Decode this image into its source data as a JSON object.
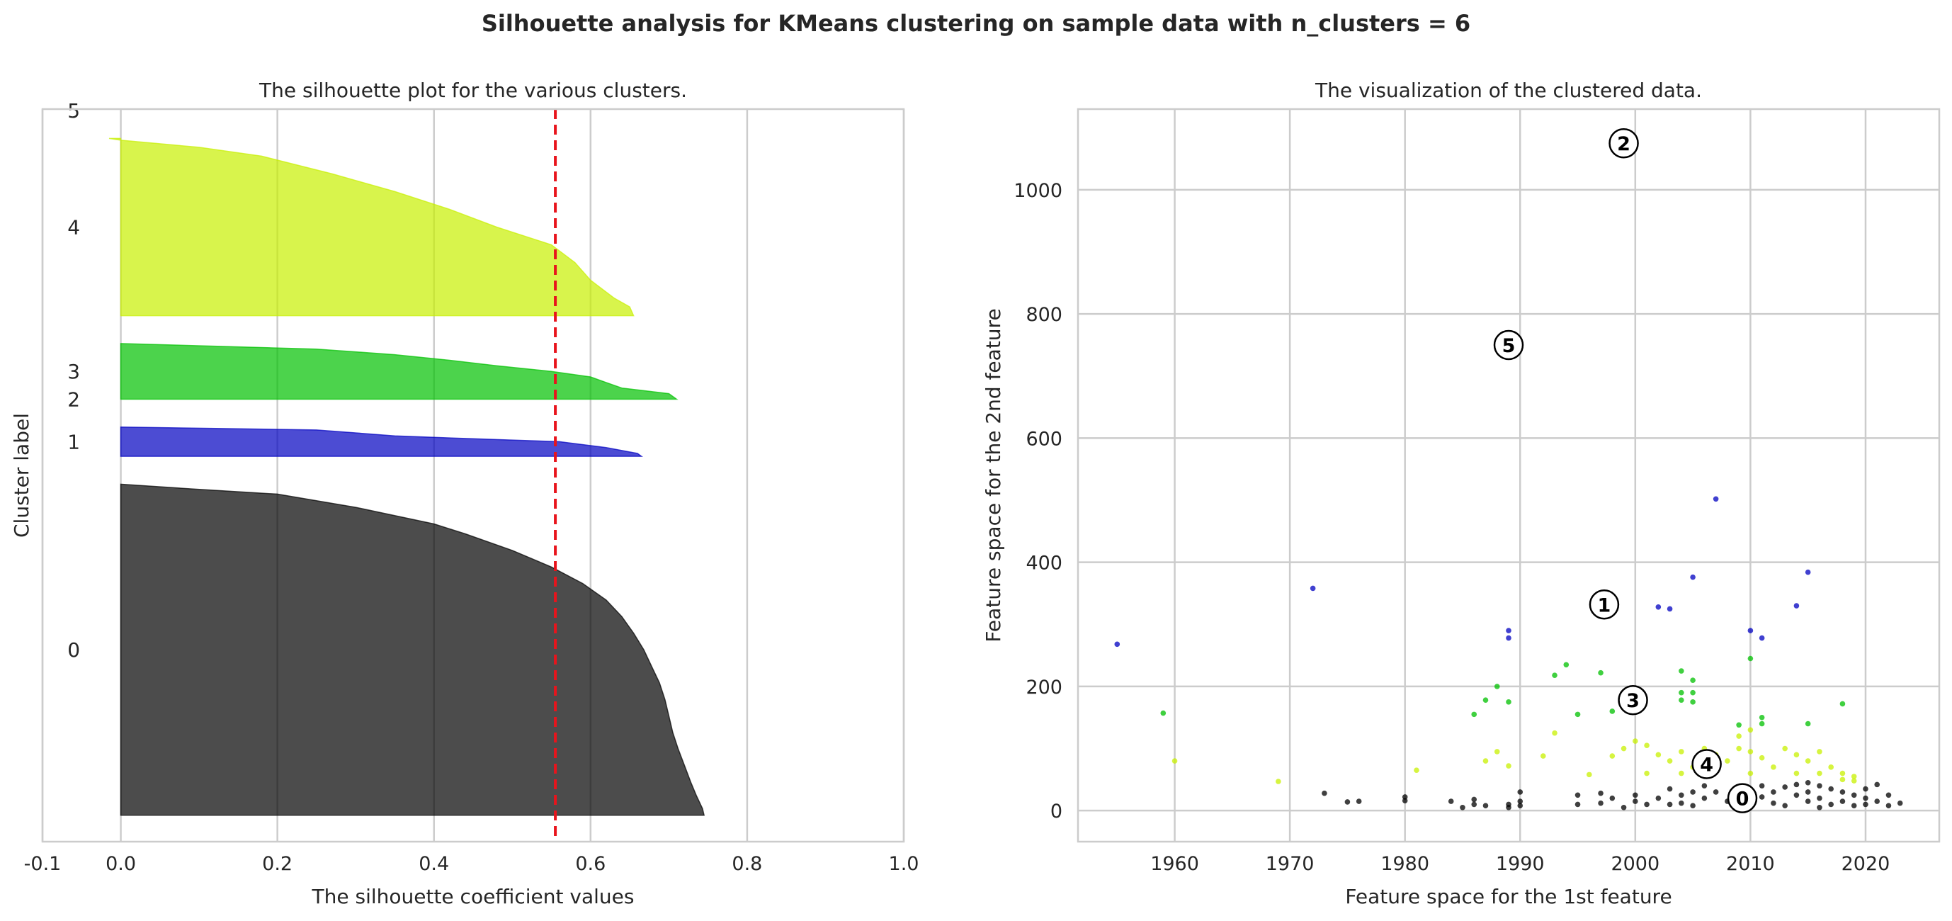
{
  "suptitle": "Silhouette analysis for KMeans clustering on sample data with n_clusters = 6",
  "chart_data": [
    {
      "type": "area",
      "title": "The silhouette plot for the various clusters.",
      "xlabel": "The silhouette coefficient values",
      "ylabel": "Cluster label",
      "xlim": [
        -0.1,
        1.0
      ],
      "ylim": [
        0,
        1000
      ],
      "xticks": [
        "-0.1",
        "0.0",
        "0.2",
        "0.4",
        "0.6",
        "0.8",
        "1.0"
      ],
      "average_silhouette": 0.555,
      "clusters": [
        {
          "label": "0",
          "color": "#000000",
          "y0": 36,
          "y1": 488,
          "profile": [
            [
              0,
              0.745
            ],
            [
              0.02,
              0.743
            ],
            [
              0.06,
              0.735
            ],
            [
              0.1,
              0.728
            ],
            [
              0.15,
              0.72
            ],
            [
              0.2,
              0.712
            ],
            [
              0.25,
              0.705
            ],
            [
              0.3,
              0.7
            ],
            [
              0.35,
              0.695
            ],
            [
              0.4,
              0.688
            ],
            [
              0.45,
              0.678
            ],
            [
              0.5,
              0.668
            ],
            [
              0.55,
              0.655
            ],
            [
              0.6,
              0.64
            ],
            [
              0.65,
              0.62
            ],
            [
              0.7,
              0.59
            ],
            [
              0.75,
              0.55
            ],
            [
              0.8,
              0.5
            ],
            [
              0.85,
              0.44
            ],
            [
              0.88,
              0.4
            ],
            [
              0.9,
              0.36
            ],
            [
              0.93,
              0.3
            ],
            [
              0.95,
              0.25
            ],
            [
              0.97,
              0.2
            ],
            [
              0.985,
              0.095
            ],
            [
              1,
              0.0
            ]
          ]
        },
        {
          "label": "1",
          "color": "#0000c0",
          "y0": 526,
          "y1": 566,
          "profile": [
            [
              0,
              0.665
            ],
            [
              0.1,
              0.66
            ],
            [
              0.3,
              0.62
            ],
            [
              0.5,
              0.56
            ],
            [
              0.6,
              0.45
            ],
            [
              0.7,
              0.35
            ],
            [
              0.8,
              0.3
            ],
            [
              0.9,
              0.25
            ],
            [
              1,
              0.0
            ]
          ]
        },
        {
          "label": "2",
          "color": "#00a0ff",
          "y0": 604,
          "y1": 604,
          "profile": [
            [
              0,
              0.0
            ],
            [
              1,
              0.0
            ]
          ]
        },
        {
          "label": "3",
          "color": "#00c000",
          "y0": 604,
          "y1": 680,
          "profile": [
            [
              0,
              0.71
            ],
            [
              0.1,
              0.7
            ],
            [
              0.2,
              0.64
            ],
            [
              0.3,
              0.62
            ],
            [
              0.4,
              0.6
            ],
            [
              0.5,
              0.55
            ],
            [
              0.6,
              0.48
            ],
            [
              0.7,
              0.42
            ],
            [
              0.8,
              0.35
            ],
            [
              0.9,
              0.25
            ],
            [
              1,
              0.0
            ]
          ]
        },
        {
          "label": "4",
          "color": "#c8f000",
          "y0": 718,
          "y1": 960,
          "profile": [
            [
              0,
              0.655
            ],
            [
              0.05,
              0.65
            ],
            [
              0.1,
              0.63
            ],
            [
              0.15,
              0.615
            ],
            [
              0.2,
              0.6
            ],
            [
              0.3,
              0.58
            ],
            [
              0.4,
              0.55
            ],
            [
              0.5,
              0.48
            ],
            [
              0.6,
              0.42
            ],
            [
              0.7,
              0.35
            ],
            [
              0.8,
              0.27
            ],
            [
              0.9,
              0.18
            ],
            [
              0.95,
              0.1
            ],
            [
              0.99,
              0.0
            ],
            [
              1,
              -0.015
            ]
          ]
        },
        {
          "label": "5",
          "color": "#ff0000",
          "y0": 998,
          "y1": 998,
          "profile": [
            [
              0,
              0.0
            ],
            [
              1,
              0.0
            ]
          ]
        }
      ]
    },
    {
      "type": "scatter",
      "title": "The visualization of the clustered data.",
      "xlabel": "Feature space for the 1st feature",
      "ylabel": "Feature space for the 2nd feature",
      "xlim": [
        1951.6,
        2026.4
      ],
      "ylim": [
        -50,
        1130
      ],
      "xticks": [
        1960,
        1970,
        1980,
        1990,
        2000,
        2010,
        2020
      ],
      "yticks": [
        0,
        200,
        400,
        600,
        800,
        1000
      ],
      "cluster_colors": [
        "#000000",
        "#0000c0",
        "#00a0ff",
        "#00c000",
        "#c8f000",
        "#ff0000"
      ],
      "centers": [
        {
          "label": "0",
          "x": 2009.3,
          "y": 20
        },
        {
          "label": "1",
          "x": 1997.3,
          "y": 332
        },
        {
          "label": "2",
          "x": 1999.0,
          "y": 1075
        },
        {
          "label": "3",
          "x": 1999.8,
          "y": 178
        },
        {
          "label": "4",
          "x": 2006.2,
          "y": 75
        },
        {
          "label": "5",
          "x": 1989.0,
          "y": 750
        }
      ],
      "points": [
        {
          "c": 1,
          "x": 1955,
          "y": 268
        },
        {
          "c": 1,
          "x": 1972,
          "y": 358
        },
        {
          "c": 1,
          "x": 1989,
          "y": 290
        },
        {
          "c": 1,
          "x": 1989,
          "y": 278
        },
        {
          "c": 1,
          "x": 2002,
          "y": 328
        },
        {
          "c": 1,
          "x": 2003,
          "y": 325
        },
        {
          "c": 1,
          "x": 2005,
          "y": 376
        },
        {
          "c": 1,
          "x": 2007,
          "y": 502
        },
        {
          "c": 1,
          "x": 2010,
          "y": 290
        },
        {
          "c": 1,
          "x": 2011,
          "y": 278
        },
        {
          "c": 1,
          "x": 2014,
          "y": 330
        },
        {
          "c": 1,
          "x": 2015,
          "y": 384
        },
        {
          "c": 3,
          "x": 1959,
          "y": 157
        },
        {
          "c": 3,
          "x": 1986,
          "y": 155
        },
        {
          "c": 3,
          "x": 1987,
          "y": 178
        },
        {
          "c": 3,
          "x": 1988,
          "y": 200
        },
        {
          "c": 3,
          "x": 1989,
          "y": 175
        },
        {
          "c": 3,
          "x": 1993,
          "y": 218
        },
        {
          "c": 3,
          "x": 1994,
          "y": 235
        },
        {
          "c": 3,
          "x": 1995,
          "y": 155
        },
        {
          "c": 3,
          "x": 1997,
          "y": 222
        },
        {
          "c": 3,
          "x": 1998,
          "y": 160
        },
        {
          "c": 3,
          "x": 2004,
          "y": 225
        },
        {
          "c": 3,
          "x": 2004,
          "y": 190
        },
        {
          "c": 3,
          "x": 2004,
          "y": 178
        },
        {
          "c": 3,
          "x": 2005,
          "y": 210
        },
        {
          "c": 3,
          "x": 2005,
          "y": 190
        },
        {
          "c": 3,
          "x": 2005,
          "y": 175
        },
        {
          "c": 3,
          "x": 2009,
          "y": 138
        },
        {
          "c": 3,
          "x": 2010,
          "y": 245
        },
        {
          "c": 3,
          "x": 2011,
          "y": 150
        },
        {
          "c": 3,
          "x": 2011,
          "y": 140
        },
        {
          "c": 3,
          "x": 2015,
          "y": 140
        },
        {
          "c": 3,
          "x": 2018,
          "y": 172
        },
        {
          "c": 4,
          "x": 1960,
          "y": 80
        },
        {
          "c": 4,
          "x": 1969,
          "y": 47
        },
        {
          "c": 4,
          "x": 1981,
          "y": 65
        },
        {
          "c": 4,
          "x": 1987,
          "y": 80
        },
        {
          "c": 4,
          "x": 1988,
          "y": 95
        },
        {
          "c": 4,
          "x": 1989,
          "y": 72
        },
        {
          "c": 4,
          "x": 1992,
          "y": 88
        },
        {
          "c": 4,
          "x": 1993,
          "y": 125
        },
        {
          "c": 4,
          "x": 1996,
          "y": 58
        },
        {
          "c": 4,
          "x": 1998,
          "y": 88
        },
        {
          "c": 4,
          "x": 1999,
          "y": 100
        },
        {
          "c": 4,
          "x": 2000,
          "y": 112
        },
        {
          "c": 4,
          "x": 2001,
          "y": 105
        },
        {
          "c": 4,
          "x": 2001,
          "y": 60
        },
        {
          "c": 4,
          "x": 2002,
          "y": 90
        },
        {
          "c": 4,
          "x": 2003,
          "y": 80
        },
        {
          "c": 4,
          "x": 2004,
          "y": 95
        },
        {
          "c": 4,
          "x": 2004,
          "y": 60
        },
        {
          "c": 4,
          "x": 2005,
          "y": 70
        },
        {
          "c": 4,
          "x": 2006,
          "y": 100
        },
        {
          "c": 4,
          "x": 2007,
          "y": 90
        },
        {
          "c": 4,
          "x": 2008,
          "y": 80
        },
        {
          "c": 4,
          "x": 2009,
          "y": 120
        },
        {
          "c": 4,
          "x": 2009,
          "y": 100
        },
        {
          "c": 4,
          "x": 2010,
          "y": 130
        },
        {
          "c": 4,
          "x": 2010,
          "y": 95
        },
        {
          "c": 4,
          "x": 2010,
          "y": 60
        },
        {
          "c": 4,
          "x": 2011,
          "y": 85
        },
        {
          "c": 4,
          "x": 2012,
          "y": 70
        },
        {
          "c": 4,
          "x": 2013,
          "y": 100
        },
        {
          "c": 4,
          "x": 2014,
          "y": 90
        },
        {
          "c": 4,
          "x": 2014,
          "y": 60
        },
        {
          "c": 4,
          "x": 2015,
          "y": 80
        },
        {
          "c": 4,
          "x": 2016,
          "y": 95
        },
        {
          "c": 4,
          "x": 2016,
          "y": 60
        },
        {
          "c": 4,
          "x": 2017,
          "y": 70
        },
        {
          "c": 4,
          "x": 2018,
          "y": 60
        },
        {
          "c": 4,
          "x": 2018,
          "y": 50
        },
        {
          "c": 4,
          "x": 2019,
          "y": 55
        },
        {
          "c": 4,
          "x": 2019,
          "y": 48
        },
        {
          "c": 0,
          "x": 1973,
          "y": 28
        },
        {
          "c": 0,
          "x": 1975,
          "y": 14
        },
        {
          "c": 0,
          "x": 1976,
          "y": 15
        },
        {
          "c": 0,
          "x": 1980,
          "y": 22
        },
        {
          "c": 0,
          "x": 1980,
          "y": 16
        },
        {
          "c": 0,
          "x": 1984,
          "y": 15
        },
        {
          "c": 0,
          "x": 1985,
          "y": 5
        },
        {
          "c": 0,
          "x": 1986,
          "y": 18
        },
        {
          "c": 0,
          "x": 1986,
          "y": 10
        },
        {
          "c": 0,
          "x": 1987,
          "y": 8
        },
        {
          "c": 0,
          "x": 1989,
          "y": 10
        },
        {
          "c": 0,
          "x": 1989,
          "y": 5
        },
        {
          "c": 0,
          "x": 1990,
          "y": 30
        },
        {
          "c": 0,
          "x": 1990,
          "y": 15
        },
        {
          "c": 0,
          "x": 1990,
          "y": 8
        },
        {
          "c": 0,
          "x": 1995,
          "y": 25
        },
        {
          "c": 0,
          "x": 1995,
          "y": 10
        },
        {
          "c": 0,
          "x": 1997,
          "y": 28
        },
        {
          "c": 0,
          "x": 1997,
          "y": 12
        },
        {
          "c": 0,
          "x": 1998,
          "y": 20
        },
        {
          "c": 0,
          "x": 1999,
          "y": 5
        },
        {
          "c": 0,
          "x": 2000,
          "y": 25
        },
        {
          "c": 0,
          "x": 2000,
          "y": 15
        },
        {
          "c": 0,
          "x": 2001,
          "y": 10
        },
        {
          "c": 0,
          "x": 2002,
          "y": 20
        },
        {
          "c": 0,
          "x": 2003,
          "y": 35
        },
        {
          "c": 0,
          "x": 2003,
          "y": 10
        },
        {
          "c": 0,
          "x": 2004,
          "y": 25
        },
        {
          "c": 0,
          "x": 2004,
          "y": 12
        },
        {
          "c": 0,
          "x": 2005,
          "y": 30
        },
        {
          "c": 0,
          "x": 2005,
          "y": 8
        },
        {
          "c": 0,
          "x": 2006,
          "y": 40
        },
        {
          "c": 0,
          "x": 2006,
          "y": 20
        },
        {
          "c": 0,
          "x": 2007,
          "y": 30
        },
        {
          "c": 0,
          "x": 2008,
          "y": 15
        },
        {
          "c": 0,
          "x": 2010,
          "y": 35
        },
        {
          "c": 0,
          "x": 2010,
          "y": 10
        },
        {
          "c": 0,
          "x": 2011,
          "y": 40
        },
        {
          "c": 0,
          "x": 2011,
          "y": 22
        },
        {
          "c": 0,
          "x": 2012,
          "y": 30
        },
        {
          "c": 0,
          "x": 2012,
          "y": 12
        },
        {
          "c": 0,
          "x": 2013,
          "y": 38
        },
        {
          "c": 0,
          "x": 2013,
          "y": 8
        },
        {
          "c": 0,
          "x": 2014,
          "y": 25
        },
        {
          "c": 0,
          "x": 2014,
          "y": 42
        },
        {
          "c": 0,
          "x": 2015,
          "y": 45
        },
        {
          "c": 0,
          "x": 2015,
          "y": 30
        },
        {
          "c": 0,
          "x": 2015,
          "y": 15
        },
        {
          "c": 0,
          "x": 2016,
          "y": 40
        },
        {
          "c": 0,
          "x": 2016,
          "y": 20
        },
        {
          "c": 0,
          "x": 2016,
          "y": 5
        },
        {
          "c": 0,
          "x": 2017,
          "y": 35
        },
        {
          "c": 0,
          "x": 2017,
          "y": 10
        },
        {
          "c": 0,
          "x": 2018,
          "y": 30
        },
        {
          "c": 0,
          "x": 2018,
          "y": 15
        },
        {
          "c": 0,
          "x": 2019,
          "y": 25
        },
        {
          "c": 0,
          "x": 2019,
          "y": 8
        },
        {
          "c": 0,
          "x": 2020,
          "y": 35
        },
        {
          "c": 0,
          "x": 2020,
          "y": 20
        },
        {
          "c": 0,
          "x": 2020,
          "y": 10
        },
        {
          "c": 0,
          "x": 2021,
          "y": 42
        },
        {
          "c": 0,
          "x": 2021,
          "y": 15
        },
        {
          "c": 0,
          "x": 2022,
          "y": 25
        },
        {
          "c": 0,
          "x": 2022,
          "y": 8
        },
        {
          "c": 0,
          "x": 2023,
          "y": 12
        }
      ]
    }
  ]
}
